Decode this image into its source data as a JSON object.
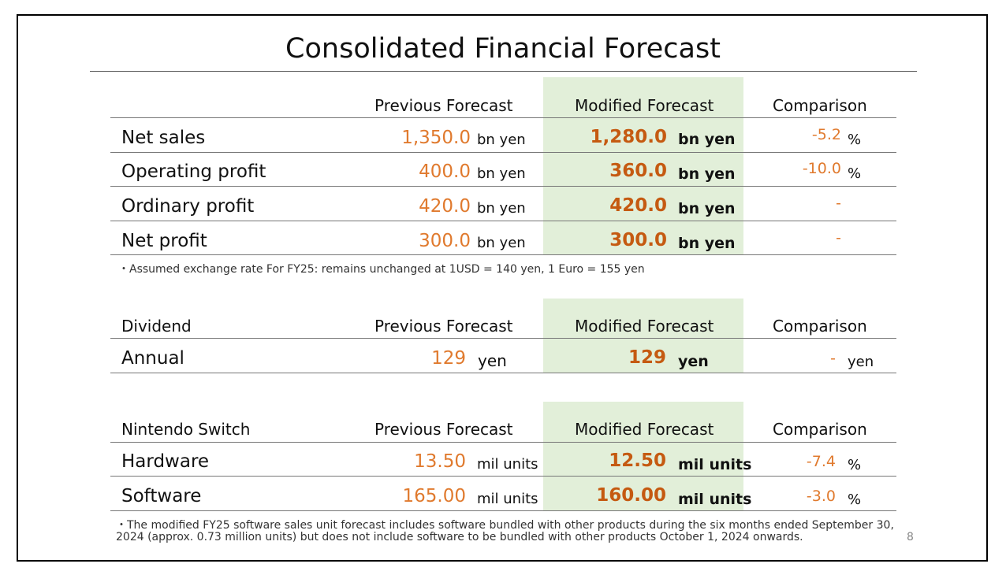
{
  "title": "Consolidated Financial Forecast",
  "colors": {
    "accent_orange": "#e07a2e",
    "modified_orange": "#c55a11",
    "band_green": "#e2efd9"
  },
  "col_headers": {
    "prev": "Previous Forecast",
    "mod": "Modified Forecast",
    "cmp": "Comparison"
  },
  "financial": {
    "rows": [
      {
        "label": "Net sales",
        "prev": "1,350.0",
        "prev_unit": "bn yen",
        "mod": "1,280.0",
        "mod_unit": "bn yen",
        "cmp": "-5.2",
        "cmp_unit": "%"
      },
      {
        "label": "Operating profit",
        "prev": "400.0",
        "prev_unit": "bn yen",
        "mod": "360.0",
        "mod_unit": "bn yen",
        "cmp": "-10.0",
        "cmp_unit": "%"
      },
      {
        "label": "Ordinary profit",
        "prev": "420.0",
        "prev_unit": "bn yen",
        "mod": "420.0",
        "mod_unit": "bn yen",
        "cmp": "-",
        "cmp_unit": ""
      },
      {
        "label": "Net profit",
        "prev": "300.0",
        "prev_unit": "bn yen",
        "mod": "300.0",
        "mod_unit": "bn yen",
        "cmp": "-",
        "cmp_unit": ""
      }
    ],
    "note": "・Assumed exchange rate For FY25: remains unchanged at 1USD = 140 yen, 1 Euro = 155 yen"
  },
  "dividend": {
    "header": "Dividend",
    "rows": [
      {
        "label": "Annual",
        "prev": "129",
        "prev_unit": "yen",
        "mod": "129",
        "mod_unit": "yen",
        "cmp": "-",
        "cmp_unit": "yen"
      }
    ]
  },
  "switch": {
    "header": "Nintendo Switch",
    "rows": [
      {
        "label": "Hardware",
        "prev": "13.50",
        "prev_unit": "mil units",
        "mod": "12.50",
        "mod_unit": "mil units",
        "cmp": "-7.4",
        "cmp_unit": "%"
      },
      {
        "label": "Software",
        "prev": "165.00",
        "prev_unit": "mil units",
        "mod": "160.00",
        "mod_unit": "mil units",
        "cmp": "-3.0",
        "cmp_unit": "%"
      }
    ],
    "note_line1": "・The modified FY25 software sales unit forecast includes software bundled with other products during the six months ended September 30,",
    "note_line2": "2024 (approx. 0.73 million units) but does not include software to be bundled with other products October 1, 2024 onwards."
  },
  "page_number": "8"
}
